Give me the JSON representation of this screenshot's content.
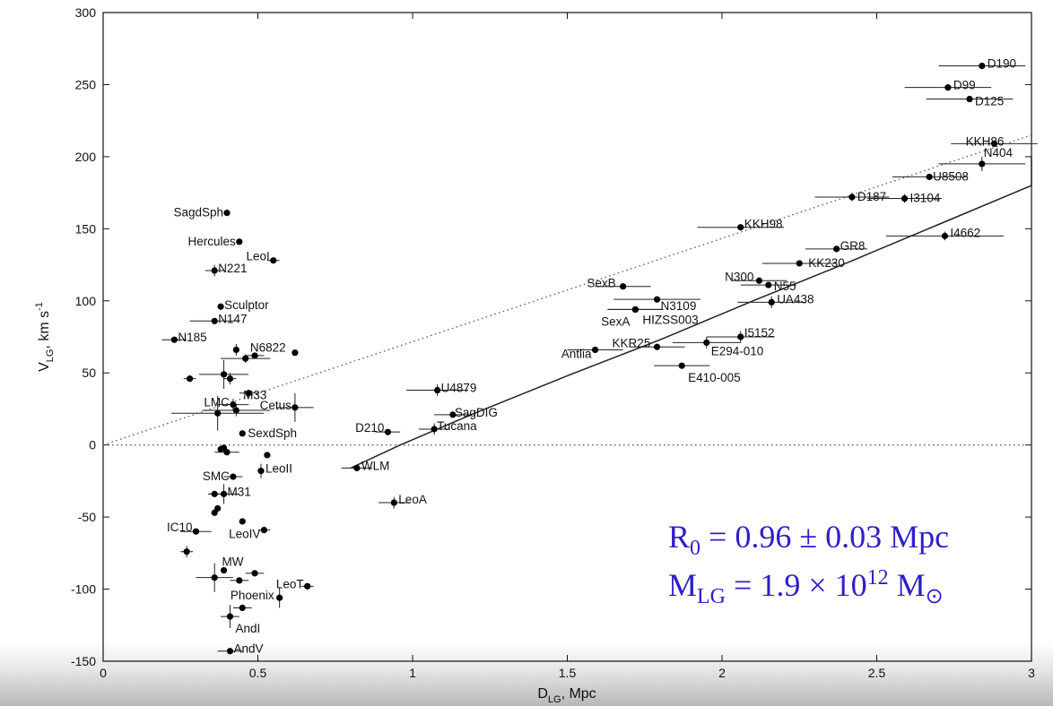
{
  "chart_data": {
    "type": "scatter",
    "title": "",
    "xlabel": {
      "main": "D",
      "sub": "LG",
      "rest": ", Mpc"
    },
    "ylabel": {
      "main": "V",
      "sub": "LG",
      "rest": ", km s",
      "sup": "-1"
    },
    "xlim": [
      0,
      3
    ],
    "ylim": [
      -150,
      300
    ],
    "xticks": [
      "0",
      "0.5",
      "1",
      "1.5",
      "2",
      "2.5",
      "3"
    ],
    "xtick_values": [
      0,
      0.5,
      1,
      1.5,
      2,
      2.5,
      3
    ],
    "yticks": [
      "-150",
      "-100",
      "-50",
      "0",
      "50",
      "100",
      "150",
      "200",
      "250",
      "300"
    ],
    "ytick_values": [
      -150,
      -100,
      -50,
      0,
      50,
      100,
      150,
      200,
      250,
      300
    ],
    "grid": false,
    "annotations": {
      "r0": {
        "sym": "R",
        "sub": "0",
        "text": " = 0.96 ± 0.03 Mpc"
      },
      "mlg": {
        "sym": "M",
        "sub": "LG",
        "mid": " = 1.9 × 10",
        "sup": "12",
        "end": " M",
        "sun": "⊙"
      }
    },
    "lines": {
      "zero": [
        [
          0,
          0
        ],
        [
          3,
          0
        ]
      ],
      "hubble_dotted": [
        [
          0,
          0
        ],
        [
          3,
          215
        ]
      ],
      "model_curve": [
        [
          0.8,
          -16
        ],
        [
          0.96,
          0
        ],
        [
          1.2,
          22
        ],
        [
          1.5,
          48
        ],
        [
          1.8,
          73
        ],
        [
          2.1,
          100
        ],
        [
          2.4,
          126
        ],
        [
          2.7,
          153
        ],
        [
          3.0,
          180
        ],
        [
          3.0,
          200
        ]
      ]
    },
    "points": [
      {
        "name": "D190",
        "x": 2.84,
        "y": 263,
        "xerr": 0.14,
        "yerr": 0
      },
      {
        "name": "D99",
        "x": 2.73,
        "y": 248,
        "xerr": 0.14,
        "yerr": 0
      },
      {
        "name": "D125",
        "x": 2.8,
        "y": 240,
        "xerr": 0.14,
        "yerr": 0
      },
      {
        "name": "KKH86",
        "x": 2.88,
        "y": 209,
        "xerr": 0.14,
        "yerr": 0
      },
      {
        "name": "N404",
        "x": 2.84,
        "y": 195,
        "xerr": 0.14,
        "yerr": 5
      },
      {
        "name": "U8508",
        "x": 2.67,
        "y": 186,
        "xerr": 0.12,
        "yerr": 0
      },
      {
        "name": "D187",
        "x": 2.42,
        "y": 172,
        "xerr": 0.12,
        "yerr": 3
      },
      {
        "name": "I3104",
        "x": 2.59,
        "y": 171,
        "xerr": 0.12,
        "yerr": 3
      },
      {
        "name": "KKH98",
        "x": 2.06,
        "y": 151,
        "xerr": 0.14,
        "yerr": 0
      },
      {
        "name": "I4662",
        "x": 2.72,
        "y": 145,
        "xerr": 0.19,
        "yerr": 3
      },
      {
        "name": "GR8",
        "x": 2.37,
        "y": 136,
        "xerr": 0.1,
        "yerr": 0
      },
      {
        "name": "KK230",
        "x": 2.25,
        "y": 126,
        "xerr": 0.12,
        "yerr": 0
      },
      {
        "name": "N300",
        "x": 2.12,
        "y": 114,
        "xerr": 0.09,
        "yerr": 0
      },
      {
        "name": "N55",
        "x": 2.15,
        "y": 111,
        "xerr": 0.09,
        "yerr": 0
      },
      {
        "name": "SexB",
        "x": 1.68,
        "y": 110,
        "xerr": 0.09,
        "yerr": 0
      },
      {
        "name": "N3109",
        "x": 1.79,
        "y": 101,
        "xerr": 0.14,
        "yerr": 0
      },
      {
        "name": "UA438",
        "x": 2.16,
        "y": 99,
        "xerr": 0.11,
        "yerr": 4
      },
      {
        "name": "HIZSS003",
        "x": 1.72,
        "y": 94,
        "xerr": 0.09,
        "yerr": 0
      },
      {
        "name": "SexA",
        "x": 1.72,
        "y": 94,
        "xerr": 0.09,
        "yerr": 0
      },
      {
        "name": "I5152",
        "x": 2.06,
        "y": 75,
        "xerr": 0.11,
        "yerr": 4
      },
      {
        "name": "E294-010",
        "x": 1.95,
        "y": 71,
        "xerr": 0.11,
        "yerr": 4
      },
      {
        "name": "KKR25",
        "x": 1.79,
        "y": 68,
        "xerr": 0.09,
        "yerr": 0
      },
      {
        "name": "Antlia",
        "x": 1.59,
        "y": 66,
        "xerr": 0.09,
        "yerr": 0
      },
      {
        "name": "E410-005",
        "x": 1.87,
        "y": 55,
        "xerr": 0.09,
        "yerr": 0
      },
      {
        "name": "U4879",
        "x": 1.08,
        "y": 38,
        "xerr": 0.1,
        "yerr": 4
      },
      {
        "name": "SagDIG",
        "x": 1.13,
        "y": 21,
        "xerr": 0.06,
        "yerr": 0
      },
      {
        "name": "Tucana",
        "x": 1.07,
        "y": 11,
        "xerr": 0.05,
        "yerr": 4
      },
      {
        "name": "D210",
        "x": 0.92,
        "y": 9,
        "xerr": 0.04,
        "yerr": 0
      },
      {
        "name": "WLM",
        "x": 0.82,
        "y": -16,
        "xerr": 0.05,
        "yerr": 0
      },
      {
        "name": "LeoA",
        "x": 0.94,
        "y": -40,
        "xerr": 0.05,
        "yerr": 4
      },
      {
        "name": "SagdSph",
        "x": 0.4,
        "y": 161,
        "xerr": 0,
        "yerr": 0
      },
      {
        "name": "Hercules",
        "x": 0.44,
        "y": 141,
        "xerr": 0,
        "yerr": 0
      },
      {
        "name": "LeoI",
        "x": 0.55,
        "y": 128,
        "xerr": 0.02,
        "yerr": 0
      },
      {
        "name": "N221",
        "x": 0.36,
        "y": 121,
        "xerr": 0.03,
        "yerr": 4
      },
      {
        "name": "Sculptor",
        "x": 0.38,
        "y": 96,
        "xerr": 0,
        "yerr": 0
      },
      {
        "name": "N147",
        "x": 0.36,
        "y": 86,
        "xerr": 0.08,
        "yerr": 0
      },
      {
        "name": "N185",
        "x": 0.23,
        "y": 73,
        "xerr": 0.04,
        "yerr": 0
      },
      {
        "name": "",
        "x": 0.43,
        "y": 66,
        "xerr": 0,
        "yerr": 4
      },
      {
        "name": "N6822",
        "x": 0.62,
        "y": 64,
        "xerr": 0,
        "yerr": 0
      },
      {
        "name": "",
        "x": 0.49,
        "y": 62,
        "xerr": 0.03,
        "yerr": 0
      },
      {
        "name": "",
        "x": 0.46,
        "y": 60,
        "xerr": 0.08,
        "yerr": 3
      },
      {
        "name": "",
        "x": 0.39,
        "y": 49,
        "xerr": 0.08,
        "yerr": 10
      },
      {
        "name": "",
        "x": 0.28,
        "y": 46,
        "xerr": 0.02,
        "yerr": 0
      },
      {
        "name": "",
        "x": 0.41,
        "y": 46,
        "xerr": 0.02,
        "yerr": 4
      },
      {
        "name": "M33",
        "x": 0.47,
        "y": 36,
        "xerr": 0.03,
        "yerr": 0
      },
      {
        "name": "LMC",
        "x": 0.42,
        "y": 28,
        "xerr": 0.05,
        "yerr": 4
      },
      {
        "name": "Cetus",
        "x": 0.62,
        "y": 26,
        "xerr": 0.06,
        "yerr": 10
      },
      {
        "name": "",
        "x": 0.43,
        "y": 24,
        "xerr": 0.11,
        "yerr": 4
      },
      {
        "name": "",
        "x": 0.37,
        "y": 22,
        "xerr": 0.15,
        "yerr": 12
      },
      {
        "name": "SexdSph",
        "x": 0.45,
        "y": 8,
        "xerr": 0,
        "yerr": 0
      },
      {
        "name": "",
        "x": 0.38,
        "y": -3,
        "xerr": 0,
        "yerr": 0
      },
      {
        "name": "",
        "x": 0.39,
        "y": -2,
        "xerr": 0,
        "yerr": 0
      },
      {
        "name": "",
        "x": 0.4,
        "y": -5,
        "xerr": 0.04,
        "yerr": 0
      },
      {
        "name": "",
        "x": 0.53,
        "y": -7,
        "xerr": 0,
        "yerr": 0
      },
      {
        "name": "LeoII",
        "x": 0.51,
        "y": -18,
        "xerr": 0,
        "yerr": 5
      },
      {
        "name": "SMC",
        "x": 0.42,
        "y": -22,
        "xerr": 0.03,
        "yerr": 0
      },
      {
        "name": "M31",
        "x": 0.39,
        "y": -34,
        "xerr": 0.05,
        "yerr": 7
      },
      {
        "name": "",
        "x": 0.36,
        "y": -34,
        "xerr": 0.02,
        "yerr": 0
      },
      {
        "name": "",
        "x": 0.37,
        "y": -44,
        "xerr": 0,
        "yerr": 0
      },
      {
        "name": "",
        "x": 0.36,
        "y": -47,
        "xerr": 0,
        "yerr": 0
      },
      {
        "name": "",
        "x": 0.45,
        "y": -53,
        "xerr": 0,
        "yerr": 0
      },
      {
        "name": "LeoIV",
        "x": 0.52,
        "y": -59,
        "xerr": 0.02,
        "yerr": 0
      },
      {
        "name": "IC10",
        "x": 0.3,
        "y": -60,
        "xerr": 0.05,
        "yerr": 0
      },
      {
        "name": "",
        "x": 0.27,
        "y": -74,
        "xerr": 0.02,
        "yerr": 4
      },
      {
        "name": "MW",
        "x": 0.39,
        "y": -87,
        "xerr": 0,
        "yerr": 0
      },
      {
        "name": "",
        "x": 0.36,
        "y": -92,
        "xerr": 0.06,
        "yerr": 10
      },
      {
        "name": "",
        "x": 0.44,
        "y": -94,
        "xerr": 0.03,
        "yerr": 0
      },
      {
        "name": "",
        "x": 0.49,
        "y": -89,
        "xerr": 0.03,
        "yerr": 0
      },
      {
        "name": "LeoT",
        "x": 0.66,
        "y": -98,
        "xerr": 0.02,
        "yerr": 0
      },
      {
        "name": "Phoenix",
        "x": 0.57,
        "y": -106,
        "xerr": 0,
        "yerr": 7
      },
      {
        "name": "",
        "x": 0.45,
        "y": -113,
        "xerr": 0.03,
        "yerr": 0
      },
      {
        "name": "AndI",
        "x": 0.41,
        "y": -119,
        "xerr": 0.03,
        "yerr": 8
      },
      {
        "name": "AndV",
        "x": 0.41,
        "y": -143,
        "xerr": 0.04,
        "yerr": 0
      }
    ]
  }
}
